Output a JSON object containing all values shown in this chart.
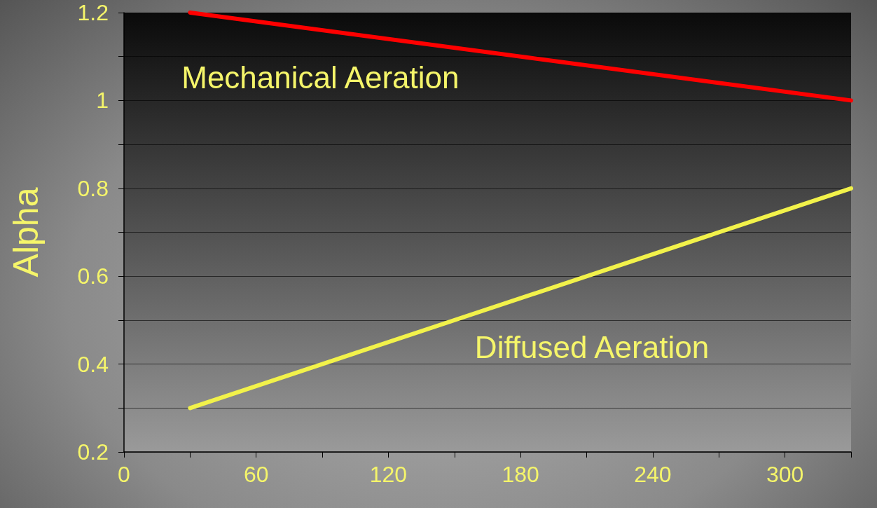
{
  "chart_data": {
    "type": "line",
    "ylabel": "Alpha",
    "x": [
      30,
      330
    ],
    "series": [
      {
        "name": "Mechanical Aeration",
        "color": "#ff0000",
        "values": [
          1.2,
          1.0
        ]
      },
      {
        "name": "Diffused Aeration",
        "color": "#f2f24a",
        "values": [
          0.3,
          0.8
        ]
      }
    ],
    "xlim": [
      0,
      330
    ],
    "xticks": [
      0,
      {
        "value": 30,
        "label": null
      },
      60,
      {
        "value": 90,
        "label": null
      },
      120,
      {
        "value": 150,
        "label": null
      },
      180,
      {
        "value": 210,
        "label": null
      },
      240,
      {
        "value": 270,
        "label": null
      },
      300,
      {
        "value": 330,
        "label": null
      }
    ],
    "ylim": [
      0.2,
      1.2
    ],
    "yticks": [
      0.2,
      {
        "value": 0.3,
        "label": null
      },
      0.4,
      {
        "value": 0.5,
        "label": null
      },
      0.6,
      {
        "value": 0.7,
        "label": null
      },
      0.8,
      {
        "value": 0.9,
        "label": null
      },
      1,
      {
        "value": 1.1,
        "label": null
      },
      1.2
    ],
    "grid": "y",
    "legend": false,
    "marker": "none",
    "line_style": "solid"
  }
}
